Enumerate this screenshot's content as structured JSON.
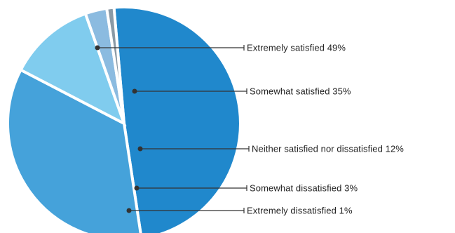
{
  "chart_data": {
    "type": "pie",
    "categories": [
      "Extremely satisfied",
      "Somewhat satisfied",
      "Neither satisfied nor dissatisfied",
      "Somewhat dissatisfied",
      "Extremely dissatisfied"
    ],
    "values": [
      49,
      35,
      12,
      3,
      1
    ],
    "labels": [
      "Extremely satisfied 49%",
      "Somewhat satisfied 35%",
      "Neither satisfied nor dissatisfied 12%",
      "Somewhat dissatisfied 3%",
      "Extremely dissatisfied 1%"
    ],
    "colors": [
      "#2088cc",
      "#45a2da",
      "#80ccee",
      "#8bbbe0",
      "#8a9aa6"
    ],
    "title": "",
    "legend": "none",
    "labels_position": "right with leader lines"
  }
}
